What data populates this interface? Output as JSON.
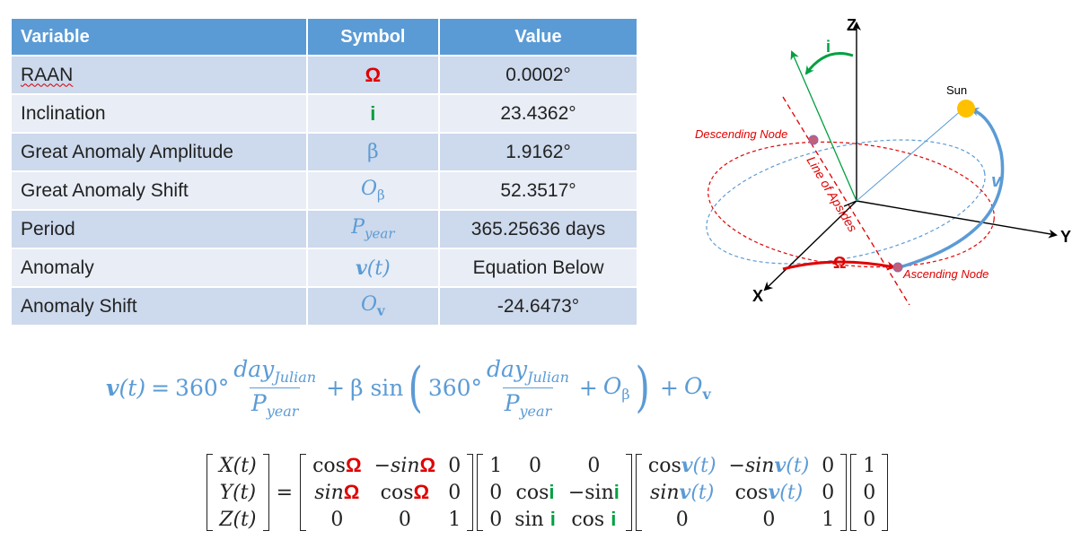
{
  "table": {
    "headers": [
      "Variable",
      "Symbol",
      "Value"
    ],
    "rows": [
      {
        "variable": "RAAN",
        "symbol": "Ω",
        "value": "0.0002°"
      },
      {
        "variable": "Inclination",
        "symbol": "i",
        "value": "23.4362°"
      },
      {
        "variable": "Great Anomaly Amplitude",
        "symbol": "β",
        "value": "1.9162°"
      },
      {
        "variable": "Great Anomaly Shift",
        "symbol": "O",
        "symbol_sub": "β",
        "value": "52.3517°"
      },
      {
        "variable": "Period",
        "symbol": "P",
        "symbol_sub": "year",
        "value": "365.25636 days"
      },
      {
        "variable": "Anomaly",
        "symbol": "v",
        "symbol_arg": "(t)",
        "value": "Equation Below"
      },
      {
        "variable": "Anomaly Shift",
        "symbol": "O",
        "symbol_sub": "v",
        "value": "-24.6473°"
      }
    ]
  },
  "equation1": {
    "lhs_v": "v",
    "lhs_t": "(t)",
    "eq": "=",
    "deg": "360°",
    "num": "day",
    "num_sub": "Julian",
    "den": "P",
    "den_sub": "year",
    "plus": "+",
    "beta_sin": "β sin",
    "lparen": "(",
    "rparen": ")",
    "o": "O",
    "o_sub_beta": "β",
    "o_sub_v": "v"
  },
  "equation2": {
    "lhs": [
      "X(t)",
      "Y(t)",
      "Z(t)"
    ],
    "eq": "=",
    "m1": [
      [
        "cosΩ",
        "−sinΩ",
        "0"
      ],
      [
        "sinΩ",
        "cosΩ",
        "0"
      ],
      [
        "0",
        "0",
        "1"
      ]
    ],
    "m2": [
      [
        "1",
        "0",
        "0"
      ],
      [
        "0",
        "cosi",
        "−sini"
      ],
      [
        "0",
        "sin i",
        "cos i"
      ]
    ],
    "m3": [
      [
        "cosv(t)",
        "−sinv(t)",
        "0"
      ],
      [
        "sinv(t)",
        "cosv(t)",
        "0"
      ],
      [
        "0",
        "0",
        "1"
      ]
    ],
    "vec": [
      "1",
      "0",
      "0"
    ],
    "tokens": {
      "cos": "cos",
      "sin": "sin",
      "neg": "−",
      "zero": "0",
      "one": "1",
      "omega": "Ω",
      "i": "i",
      "v": "v",
      "t": "(t)",
      "X": "X",
      "Y": "Y",
      "Z": "Z"
    }
  },
  "diagram": {
    "axis_x": "X",
    "axis_y": "Y",
    "axis_z": "Z",
    "sun_label": "Sun",
    "descending_node": "Descending Node",
    "ascending_node": "Ascending Node",
    "line_of_apsides": "Line of Apsides",
    "omega_label": "Ω",
    "i_label": "i",
    "v_label": "v",
    "colors": {
      "red": "#e00000",
      "green": "#00a040",
      "blue": "#5b9bd5",
      "sun": "#ffc000",
      "node": "#c0607a"
    }
  }
}
